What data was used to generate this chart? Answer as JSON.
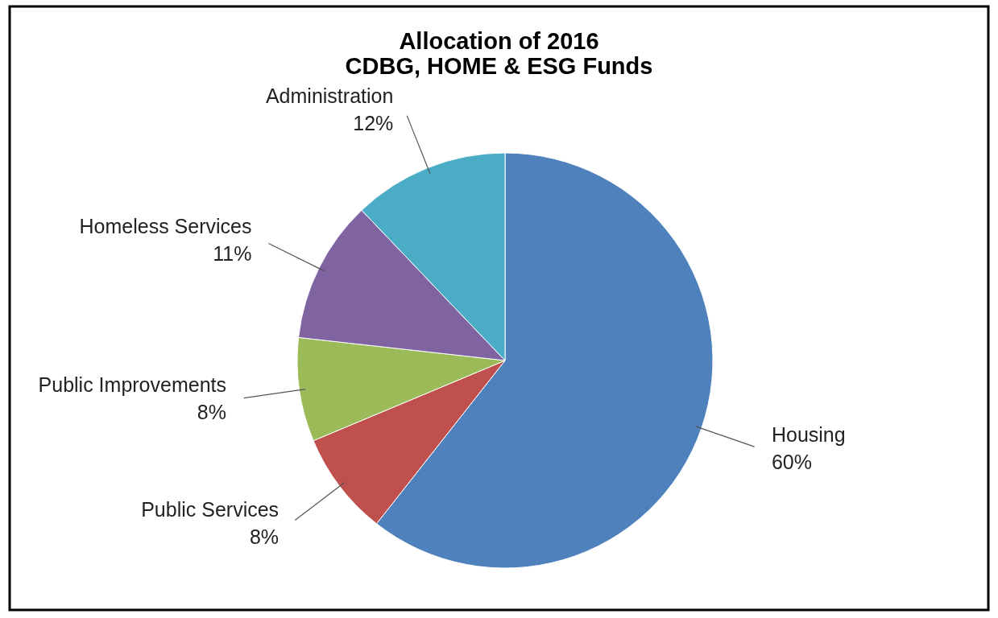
{
  "chart_data": {
    "type": "pie",
    "title": "Allocation of 2016\nCDBG, HOME & ESG Funds",
    "categories": [
      "Housing",
      "Public Services",
      "Public Improvements",
      "Homeless Services",
      "Administration"
    ],
    "values": [
      60,
      8,
      8,
      11,
      12
    ],
    "value_labels": [
      "60%",
      "8%",
      "8%",
      "11%",
      "12%"
    ],
    "colors": [
      "#4f81bd",
      "#c0504d",
      "#9bbb59",
      "#8064a2",
      "#4bacc6"
    ],
    "legend": false
  }
}
